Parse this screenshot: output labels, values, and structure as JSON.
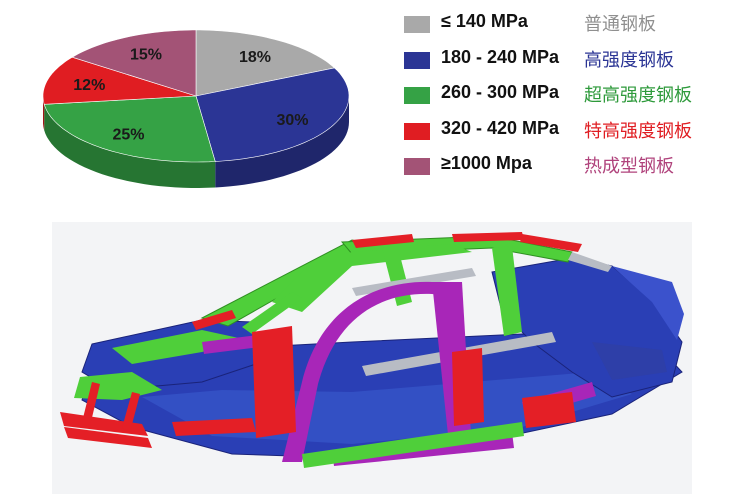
{
  "chart_data": {
    "type": "pie",
    "title": "",
    "series": [
      {
        "name": "普通钢板",
        "value": 18,
        "label": "18%",
        "color": "#a9a9a9"
      },
      {
        "name": "高强度钢板",
        "value": 30,
        "label": "30%",
        "color": "#2b3595"
      },
      {
        "name": "超高强度钢板",
        "value": 25,
        "label": "25%",
        "color": "#35a245"
      },
      {
        "name": "特高强度钢板",
        "value": 12,
        "label": "12%",
        "color": "#e01d22"
      },
      {
        "name": "热成型钢板",
        "value": 15,
        "label": "15%",
        "color": "#a35376"
      }
    ],
    "style": "3d-pie",
    "legend_position": "right"
  },
  "legend": [
    {
      "range": "≤ 140 MPa",
      "name": "普通钢板",
      "color": "#a9a9a9",
      "name_color": "#8f8f8f"
    },
    {
      "range": "180 - 240 MPa",
      "name": "高强度钢板",
      "color": "#2b3595",
      "name_color": "#2b3595"
    },
    {
      "range": "260 - 300 MPa",
      "name": "超高强度钢板",
      "color": "#35a245",
      "name_color": "#2e9a3b"
    },
    {
      "range": "320 - 420 MPa",
      "name": "特高强度钢板",
      "color": "#e01d22",
      "name_color": "#e01d22"
    },
    {
      "range": "≥1000 Mpa",
      "name": "热成型钢板",
      "color": "#a35376",
      "name_color": "#b0437c"
    }
  ],
  "illustration": {
    "name": "car-body-in-white",
    "colors": {
      "blue": "#2a3fb5",
      "green": "#4fcf3a",
      "red": "#e41f26",
      "purple": "#a826b8",
      "gray": "#b8bcc4",
      "dark": "#1a237a"
    }
  }
}
